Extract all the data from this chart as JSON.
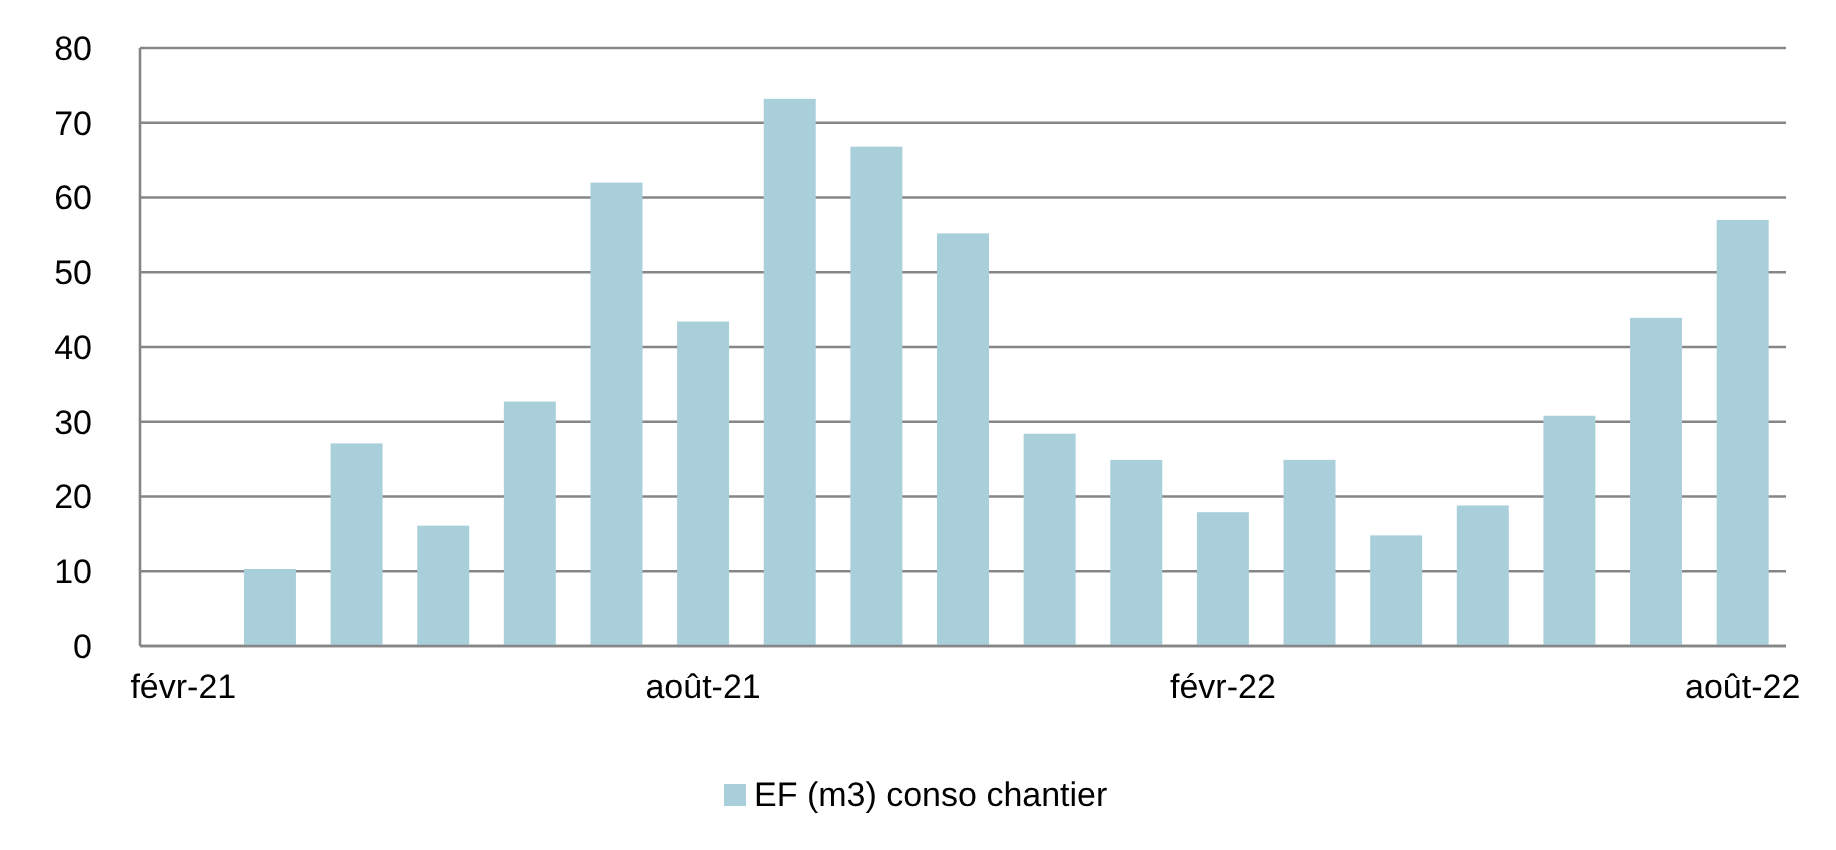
{
  "chart_data": {
    "type": "bar",
    "categories": [
      "févr-21",
      null,
      null,
      null,
      null,
      null,
      "août-21",
      null,
      null,
      null,
      null,
      null,
      "févr-22",
      null,
      null,
      null,
      null,
      null,
      "août-22"
    ],
    "series": [
      {
        "name": "EF (m3) conso chantier",
        "color": "#a9cfdb",
        "values": [
          null,
          10.3,
          27.1,
          16.1,
          32.7,
          62,
          43.4,
          73.2,
          66.8,
          55.2,
          28.4,
          24.9,
          17.9,
          24.9,
          14.8,
          18.8,
          30.8,
          43.9,
          57
        ]
      }
    ],
    "ylim": [
      0,
      80
    ],
    "yticks": [
      0,
      10,
      20,
      30,
      40,
      50,
      60,
      70,
      80
    ],
    "grid": "y",
    "legend": "bottom"
  }
}
